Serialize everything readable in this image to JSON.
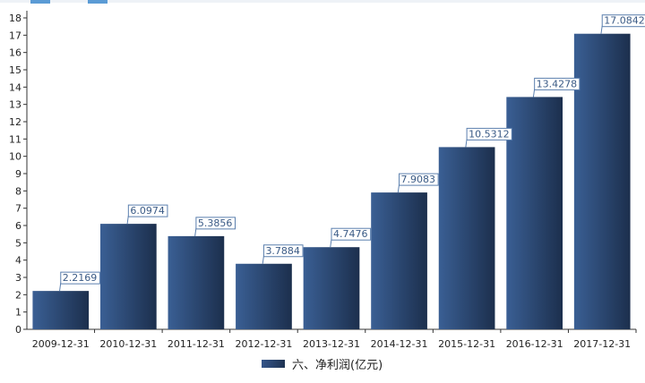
{
  "chart_data": {
    "type": "bar",
    "categories": [
      "2009-12-31",
      "2010-12-31",
      "2011-12-31",
      "2012-12-31",
      "2013-12-31",
      "2014-12-31",
      "2015-12-31",
      "2016-12-31",
      "2017-12-31"
    ],
    "series": [
      {
        "name": "六、净利润(亿元)",
        "values": [
          2.2169,
          6.0974,
          5.3856,
          3.7884,
          4.7476,
          7.9083,
          10.5312,
          13.4278,
          17.0842
        ],
        "data_labels": [
          "2.2169",
          "6.0974",
          "5.3856",
          "3.7884",
          "4.7476",
          "7.9083",
          "10.5312",
          "13.4278",
          "17.0842"
        ]
      }
    ],
    "yticks": [
      "0",
      "1",
      "2",
      "3",
      "4",
      "5",
      "6",
      "7",
      "8",
      "9",
      "10",
      "11",
      "12",
      "13",
      "14",
      "15",
      "16",
      "17",
      "18"
    ],
    "ylim": [
      0,
      18
    ],
    "title": "",
    "xlabel": "",
    "ylabel": "",
    "grid": false,
    "legend_position": "bottom-center",
    "colors": {
      "bar_light": "#3a5f94",
      "bar_dark": "#1c2f4d",
      "label_border": "#5b7fae",
      "axis": "#333333"
    }
  }
}
